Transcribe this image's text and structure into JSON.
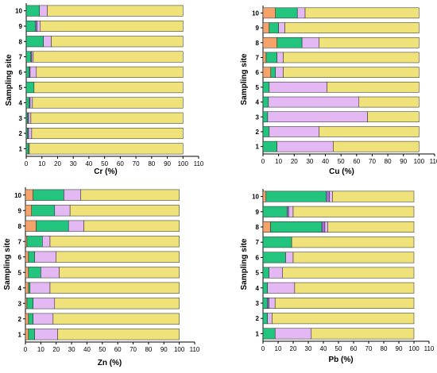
{
  "colors": {
    "orange": "#F4A46A",
    "green": "#22C47E",
    "purple": "#A96FD8",
    "violet": "#E4B8F2",
    "yellow": "#EFE27A",
    "outline": "#222222"
  },
  "chart_data": [
    {
      "type": "bar",
      "orientation": "horizontal",
      "stacked": true,
      "xlabel": "Cr (%)",
      "ylabel": "Sampling site",
      "xlim": [
        0,
        110
      ],
      "x_ticks": [
        "0",
        "10",
        "20",
        "30",
        "40",
        "50",
        "60",
        "70",
        "80",
        "90",
        "100",
        "110"
      ],
      "categories": [
        "1",
        "2",
        "3",
        "4",
        "5",
        "6",
        "7",
        "8",
        "9",
        "10"
      ],
      "series": [
        {
          "color_key": "orange",
          "values": [
            0,
            0,
            0,
            0,
            0,
            0,
            0,
            0,
            0,
            0
          ]
        },
        {
          "color_key": "green",
          "values": [
            1.5,
            1,
            1,
            2,
            5,
            2,
            3,
            11,
            6,
            8.5
          ]
        },
        {
          "color_key": "purple",
          "values": [
            0,
            0.5,
            0.5,
            0.5,
            0,
            0.5,
            0.5,
            0,
            1,
            0
          ]
        },
        {
          "color_key": "violet",
          "values": [
            0.5,
            2,
            1.5,
            1.5,
            0,
            4,
            1,
            5,
            2,
            5
          ]
        },
        {
          "color_key": "yellow",
          "values": [
            98,
            96.5,
            97,
            96,
            95,
            93.5,
            95.5,
            84,
            91,
            86.5
          ]
        }
      ]
    },
    {
      "type": "bar",
      "orientation": "horizontal",
      "stacked": true,
      "xlabel": "Cu (%)",
      "ylabel": "Sampling site",
      "xlim": [
        0,
        110
      ],
      "x_ticks": [
        "0",
        "10",
        "20",
        "30",
        "40",
        "50",
        "60",
        "70",
        "80",
        "90",
        "100",
        "110"
      ],
      "categories": [
        "1",
        "2",
        "3",
        "4",
        "5",
        "6",
        "7",
        "8",
        "9",
        "10"
      ],
      "series": [
        {
          "color_key": "orange",
          "values": [
            0,
            0,
            0,
            0,
            0,
            5,
            2,
            9,
            4,
            8
          ]
        },
        {
          "color_key": "green",
          "values": [
            9,
            4,
            3,
            3.5,
            4,
            3,
            7,
            16,
            6,
            14
          ]
        },
        {
          "color_key": "purple",
          "values": [
            0,
            0,
            0,
            0,
            0,
            0,
            0,
            0,
            0,
            0
          ]
        },
        {
          "color_key": "violet",
          "values": [
            36,
            32,
            64,
            58,
            37,
            5,
            4,
            11,
            4,
            5
          ]
        },
        {
          "color_key": "yellow",
          "values": [
            55,
            64,
            33,
            38.5,
            59,
            87,
            87,
            64,
            86,
            73
          ]
        }
      ]
    },
    {
      "type": "bar",
      "orientation": "horizontal",
      "stacked": true,
      "xlabel": "Zn (%)",
      "ylabel": "Sampling site",
      "xlim": [
        0,
        110
      ],
      "x_ticks": [
        "0",
        "10",
        "20",
        "30",
        "40",
        "50",
        "60",
        "70",
        "80",
        "90",
        "100",
        "110"
      ],
      "categories": [
        "1",
        "2",
        "3",
        "4",
        "5",
        "6",
        "7",
        "8",
        "9",
        "10"
      ],
      "series": [
        {
          "color_key": "orange",
          "values": [
            2,
            2,
            1,
            2,
            2,
            2,
            1,
            7,
            4,
            5
          ]
        },
        {
          "color_key": "green",
          "values": [
            4,
            3,
            4,
            1,
            8,
            4,
            10,
            21,
            15,
            20
          ]
        },
        {
          "color_key": "purple",
          "values": [
            0,
            0,
            0,
            0,
            0,
            0,
            0,
            0,
            0,
            0
          ]
        },
        {
          "color_key": "violet",
          "values": [
            15,
            13,
            14,
            13,
            12,
            14,
            5,
            10,
            10,
            11
          ]
        },
        {
          "color_key": "yellow",
          "values": [
            79,
            82,
            81,
            84,
            78,
            80,
            84,
            62,
            71,
            64
          ]
        }
      ]
    },
    {
      "type": "bar",
      "orientation": "horizontal",
      "stacked": true,
      "xlabel": "Pb (%)",
      "ylabel": "Sampling site",
      "xlim": [
        0,
        110
      ],
      "x_ticks": [
        "0",
        "10",
        "20",
        "30",
        "40",
        "50",
        "60",
        "70",
        "80",
        "90",
        "100",
        "110"
      ],
      "categories": [
        "1",
        "2",
        "3",
        "4",
        "5",
        "6",
        "7",
        "8",
        "9",
        "10"
      ],
      "series": [
        {
          "color_key": "orange",
          "values": [
            0,
            0,
            0,
            0,
            0,
            0,
            0,
            5,
            0,
            2
          ]
        },
        {
          "color_key": "green",
          "values": [
            8,
            3,
            3,
            3,
            4,
            15,
            19,
            34,
            16,
            40
          ]
        },
        {
          "color_key": "purple",
          "values": [
            0,
            0,
            1,
            0,
            0,
            0,
            0,
            2,
            1,
            2
          ]
        },
        {
          "color_key": "violet",
          "values": [
            24,
            3,
            4,
            18,
            9,
            5,
            0,
            2,
            3,
            2
          ]
        },
        {
          "color_key": "yellow",
          "values": [
            68,
            94,
            92,
            79,
            87,
            80,
            81,
            57,
            80,
            54
          ]
        }
      ]
    }
  ]
}
